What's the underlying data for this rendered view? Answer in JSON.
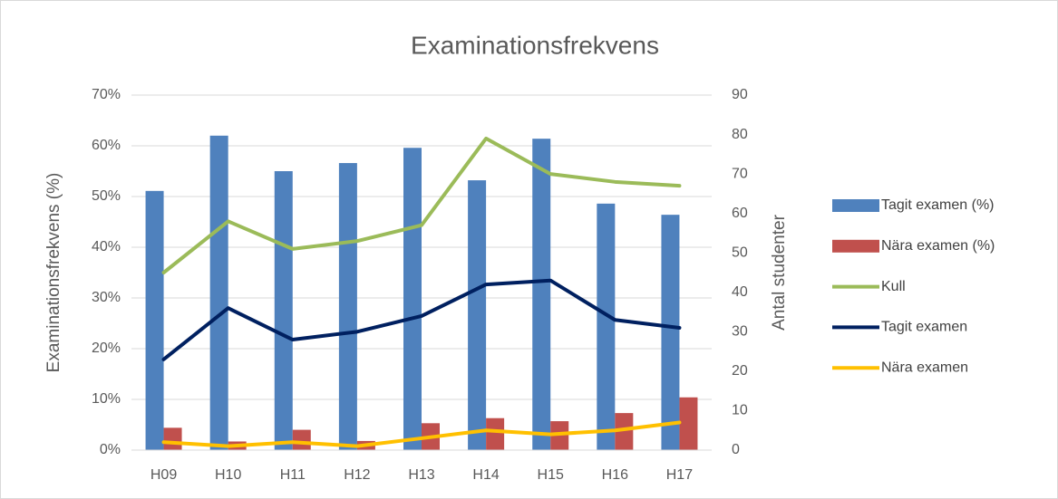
{
  "chart_data": {
    "type": "combo",
    "title": "Examinationsfrekvens",
    "y_label": "Examinationsfrekvens (%)",
    "y2_label": "Antal studenter",
    "categories": [
      "H09",
      "H10",
      "H11",
      "H12",
      "H13",
      "H14",
      "H15",
      "H16",
      "H17"
    ],
    "series": [
      {
        "name": "Tagit examen (%)",
        "type": "bar",
        "color": "#4f81bd",
        "values": [
          51.1,
          62.0,
          55.0,
          56.6,
          59.6,
          53.2,
          61.4,
          48.6,
          46.4
        ]
      },
      {
        "name": "Nära examen (%)",
        "type": "bar",
        "color": "#c0504d",
        "values": [
          4.4,
          1.7,
          4.0,
          1.8,
          5.3,
          6.3,
          5.7,
          7.3,
          10.4
        ]
      },
      {
        "name": "Kull",
        "type": "line",
        "axis": "y2",
        "color": "#9bbb59",
        "values": [
          45,
          58,
          51,
          53,
          57,
          79,
          70,
          68,
          67
        ]
      },
      {
        "name": "Tagit examen",
        "type": "line",
        "axis": "y2",
        "color": "#002060",
        "values": [
          23,
          36,
          28,
          30,
          34,
          42,
          43,
          33,
          31
        ]
      },
      {
        "name": "Nära examen",
        "type": "line",
        "axis": "y2",
        "color": "#ffc000",
        "values": [
          2,
          1,
          2,
          1,
          3,
          5,
          4,
          5,
          7
        ]
      }
    ],
    "ylim": [
      0,
      70
    ],
    "yticks": [
      {
        "value": 0,
        "label": "0%"
      },
      {
        "value": 10,
        "label": "10%"
      },
      {
        "value": 20,
        "label": "20%"
      },
      {
        "value": 30,
        "label": "30%"
      },
      {
        "value": 40,
        "label": "40%"
      },
      {
        "value": 50,
        "label": "50%"
      },
      {
        "value": 60,
        "label": "60%"
      },
      {
        "value": 70,
        "label": "70%"
      }
    ],
    "y2lim": [
      0,
      90
    ],
    "y2ticks": [
      0,
      10,
      20,
      30,
      40,
      50,
      60,
      70,
      80,
      90
    ],
    "grid": true,
    "legend": "right"
  }
}
